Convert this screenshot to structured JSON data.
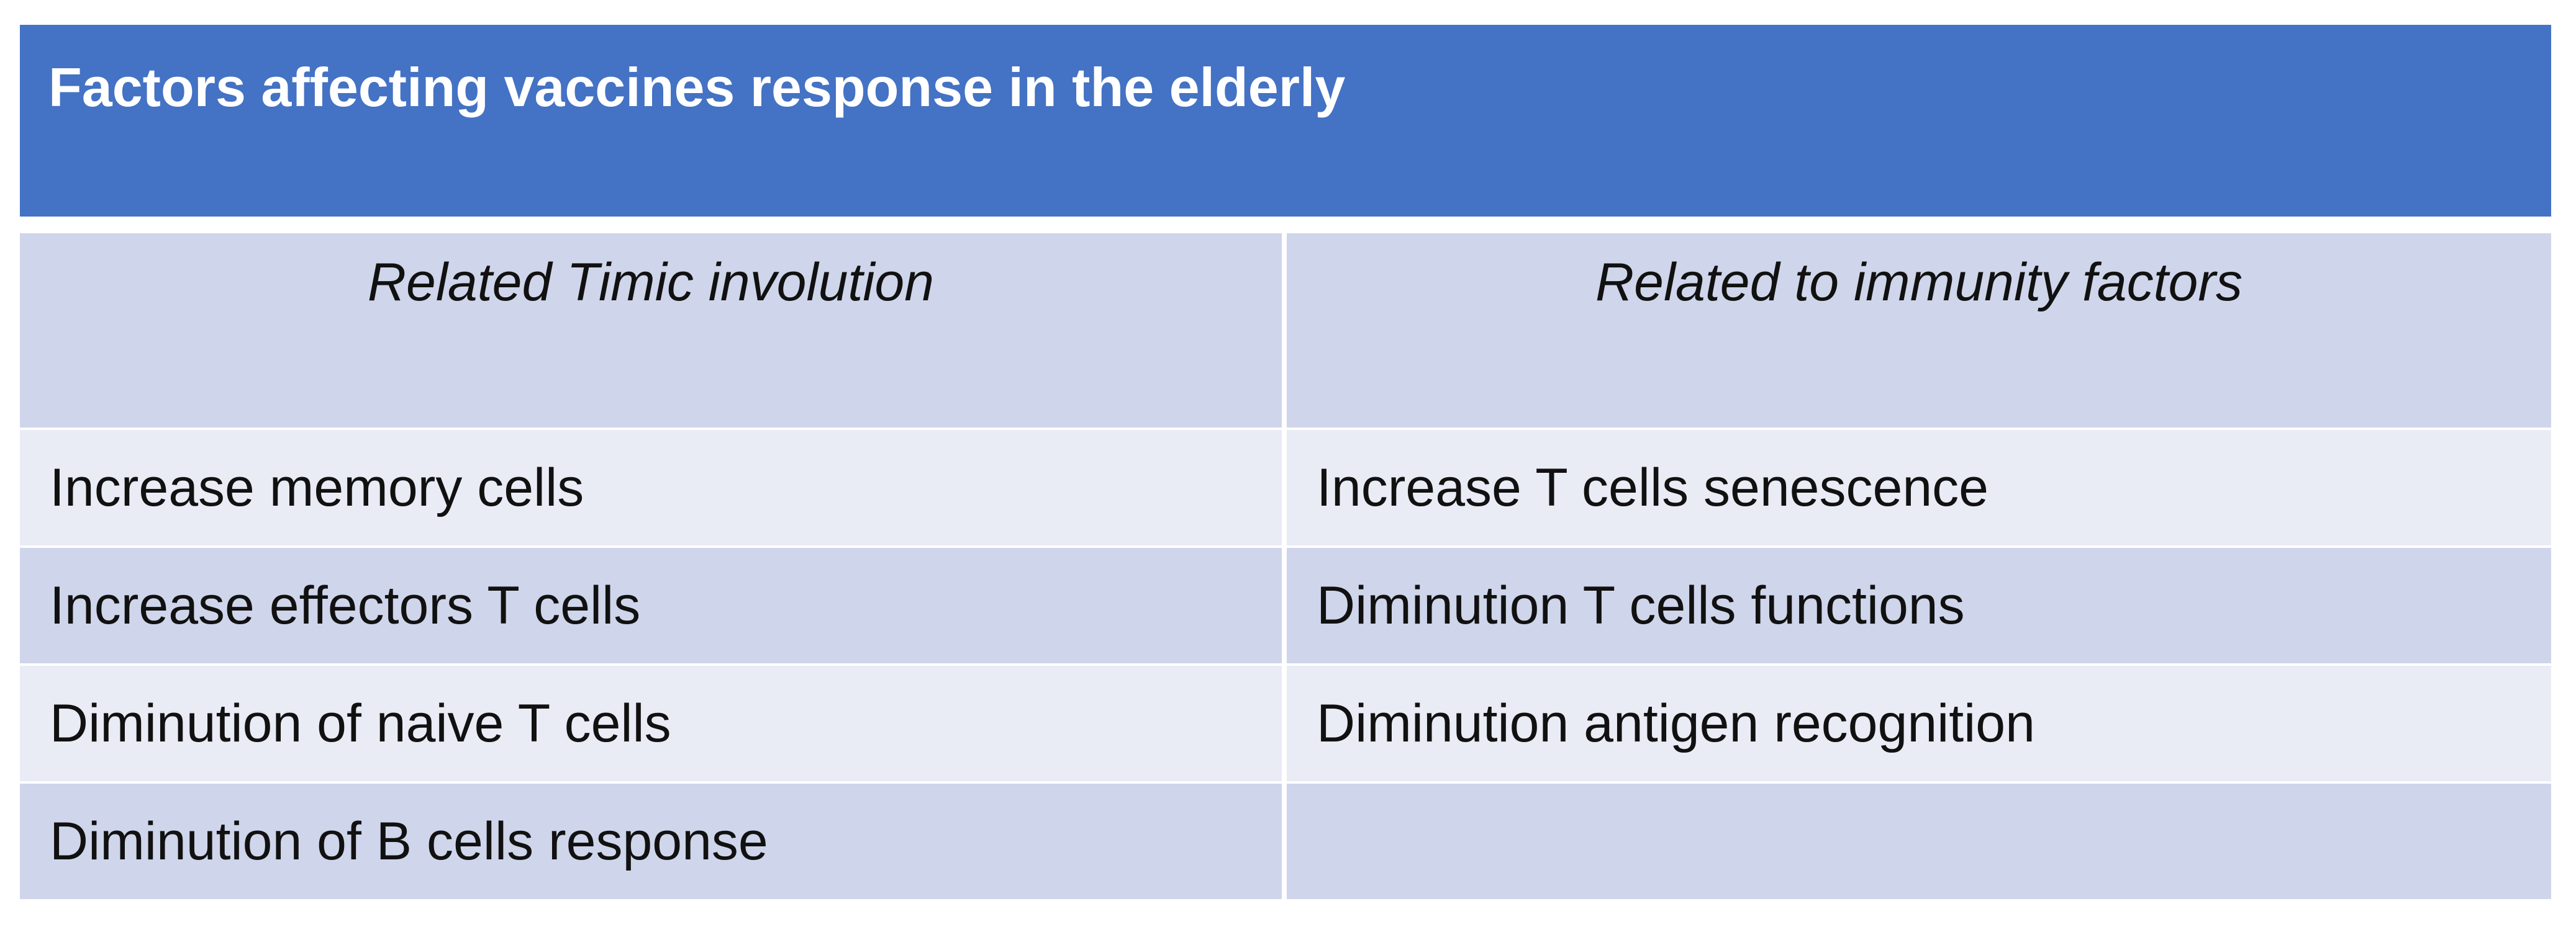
{
  "title": "Factors affecting vaccines response in the elderly",
  "table": {
    "header": [
      "Related Timic involution",
      "Related to immunity factors"
    ],
    "rows": [
      [
        "Increase memory cells",
        "Increase T cells senescence"
      ],
      [
        "Increase effectors T cells",
        "Diminution T cells functions"
      ],
      [
        "Diminution of naive T cells",
        "Diminution antigen recognition"
      ],
      [
        "Diminution of B cells response"
      ]
    ]
  }
}
